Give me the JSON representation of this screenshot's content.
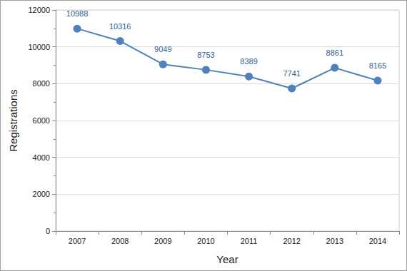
{
  "chart_data": {
    "type": "line",
    "x_label": "Year",
    "y_label": "Registrations",
    "categories": [
      "2007",
      "2008",
      "2009",
      "2010",
      "2011",
      "2012",
      "2013",
      "2014"
    ],
    "values": [
      10988,
      10316,
      9049,
      8753,
      8389,
      7741,
      8861,
      8165
    ],
    "color": "#4f81bd",
    "marker": "circle",
    "ylim": [
      0,
      12000
    ],
    "yticks": [
      0,
      2000,
      4000,
      6000,
      8000,
      10000,
      12000
    ],
    "grid": true,
    "data_labels": true
  }
}
